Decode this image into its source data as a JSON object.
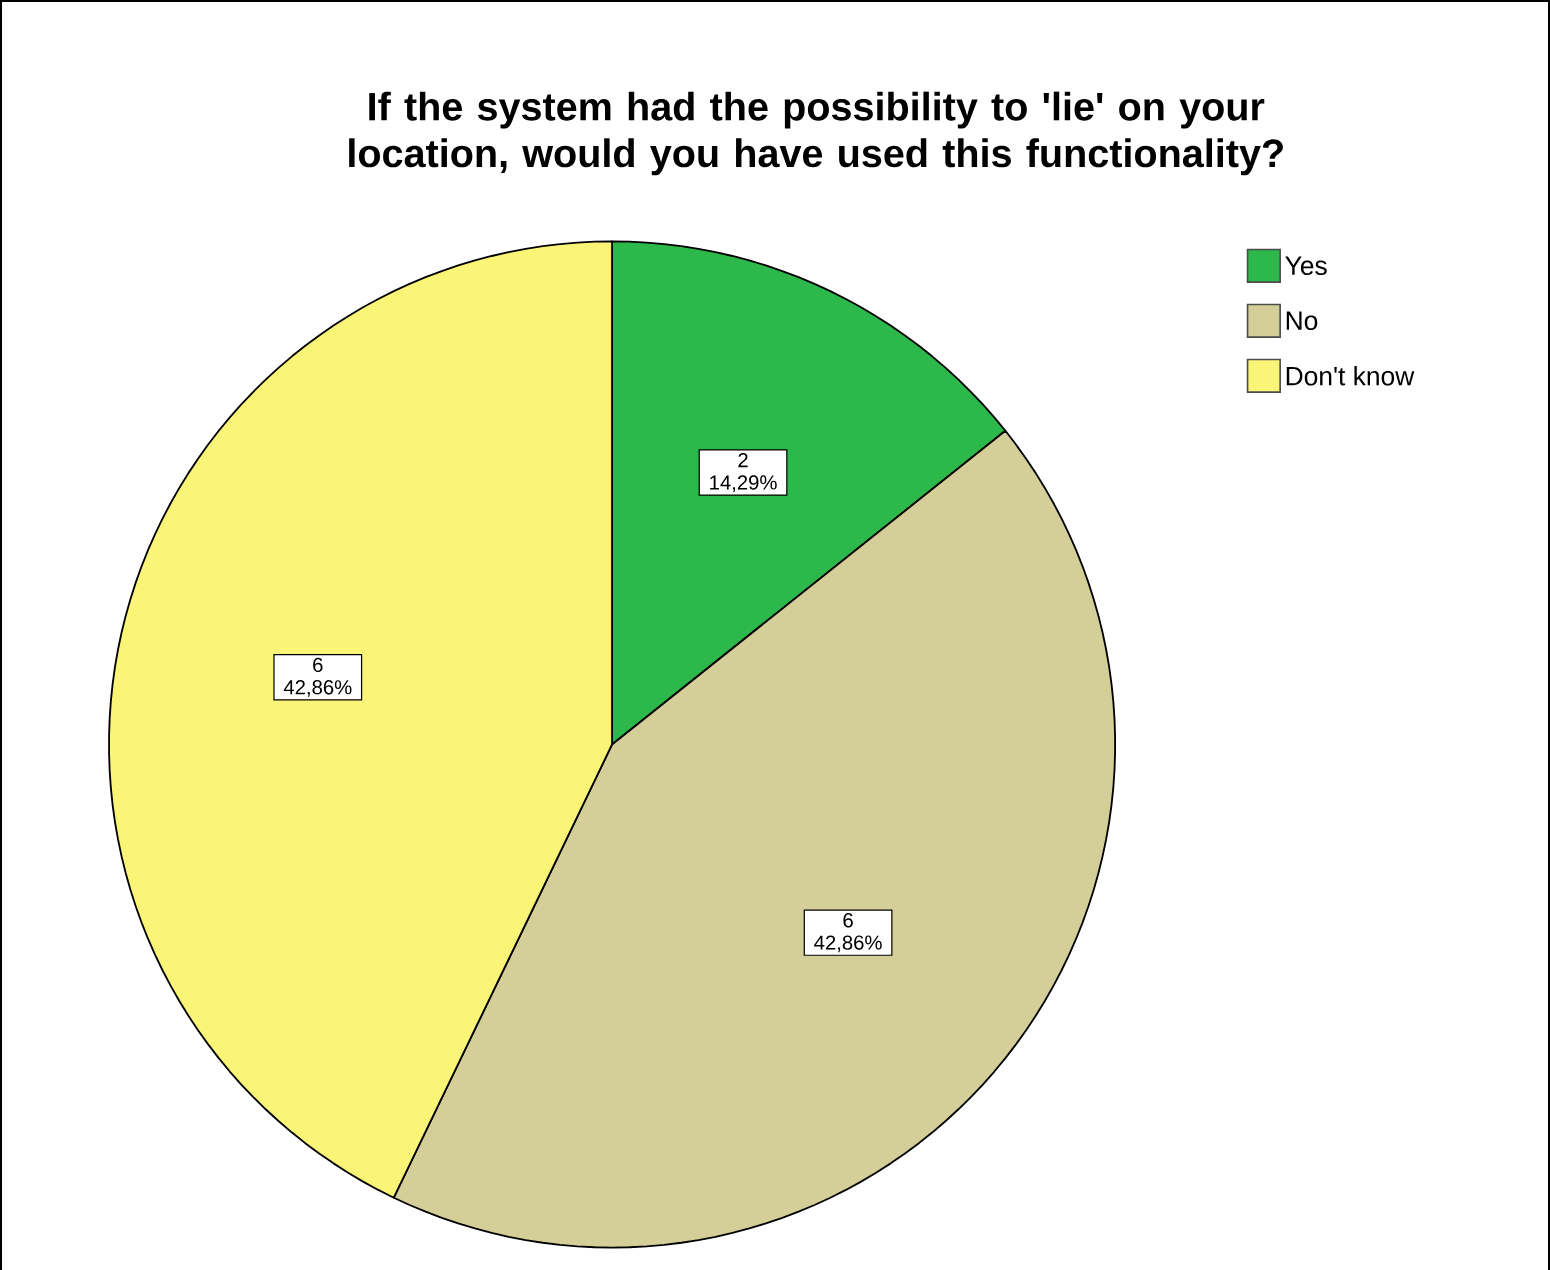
{
  "chart_data": {
    "type": "pie",
    "title": "If the system had the possibility to 'lie' on your location, would you have used this functionality?",
    "categories": [
      "Yes",
      "No",
      "Don't know"
    ],
    "values": [
      2,
      6,
      6
    ],
    "colors": [
      "#2db84b",
      "#d4cf99",
      "#fbf577"
    ],
    "value_labels": [
      "2 14,29%",
      "6 42,86%",
      "6 42,86%"
    ],
    "legend": "top right"
  }
}
